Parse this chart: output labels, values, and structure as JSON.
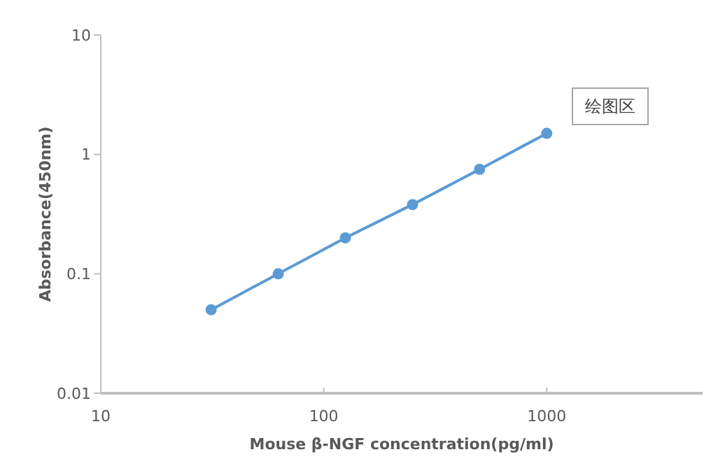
{
  "chart_data": {
    "type": "line",
    "xlabel": "Mouse β-NGF concentration(pg/ml)",
    "ylabel": "Absorbance(450nm)",
    "x": [
      31.25,
      62.5,
      125,
      250,
      500,
      1000
    ],
    "series": [
      {
        "color": "#5b9bd5",
        "values": [
          0.05,
          0.1,
          0.2,
          0.38,
          0.75,
          1.5
        ]
      }
    ],
    "log": "xy",
    "xlim": [
      10,
      5000
    ],
    "ylim": [
      0.01,
      10
    ],
    "xticks": [
      10,
      100,
      1000
    ],
    "yticks": [
      0.01,
      0.1,
      1,
      10
    ],
    "marker": "circle",
    "grid": false,
    "annotations": [
      "绘图区"
    ]
  }
}
